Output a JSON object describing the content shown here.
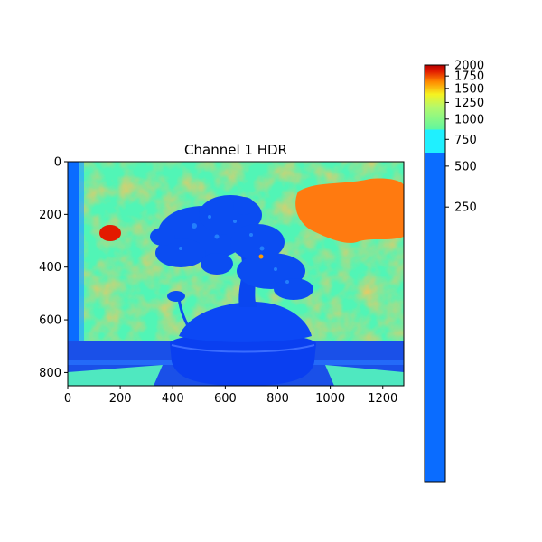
{
  "chart_data": [
    {
      "type": "heatmap",
      "title": "Channel 1 HDR",
      "description_source": "camera image rendered with a jet-like colormap",
      "xlim": [
        0,
        1280
      ],
      "ylim": [
        850,
        0
      ],
      "x_ticks": [
        0,
        200,
        400,
        600,
        800,
        1000,
        1200
      ],
      "y_ticks": [
        0,
        200,
        400,
        600,
        800
      ],
      "colormap": "jet",
      "grid": false
    },
    {
      "type": "colorbar",
      "range": [
        0,
        2000
      ],
      "scale": "nonlinear",
      "ticks": [
        250,
        500,
        750,
        1000,
        1250,
        1500,
        1750,
        2000
      ],
      "colors": {
        "low": "#0a6cff",
        "cyan": "#1ff0ff",
        "green": "#5ff7a0",
        "yellow": "#f6f220",
        "orange": "#ff8a00",
        "high": "#b50000"
      }
    }
  ]
}
